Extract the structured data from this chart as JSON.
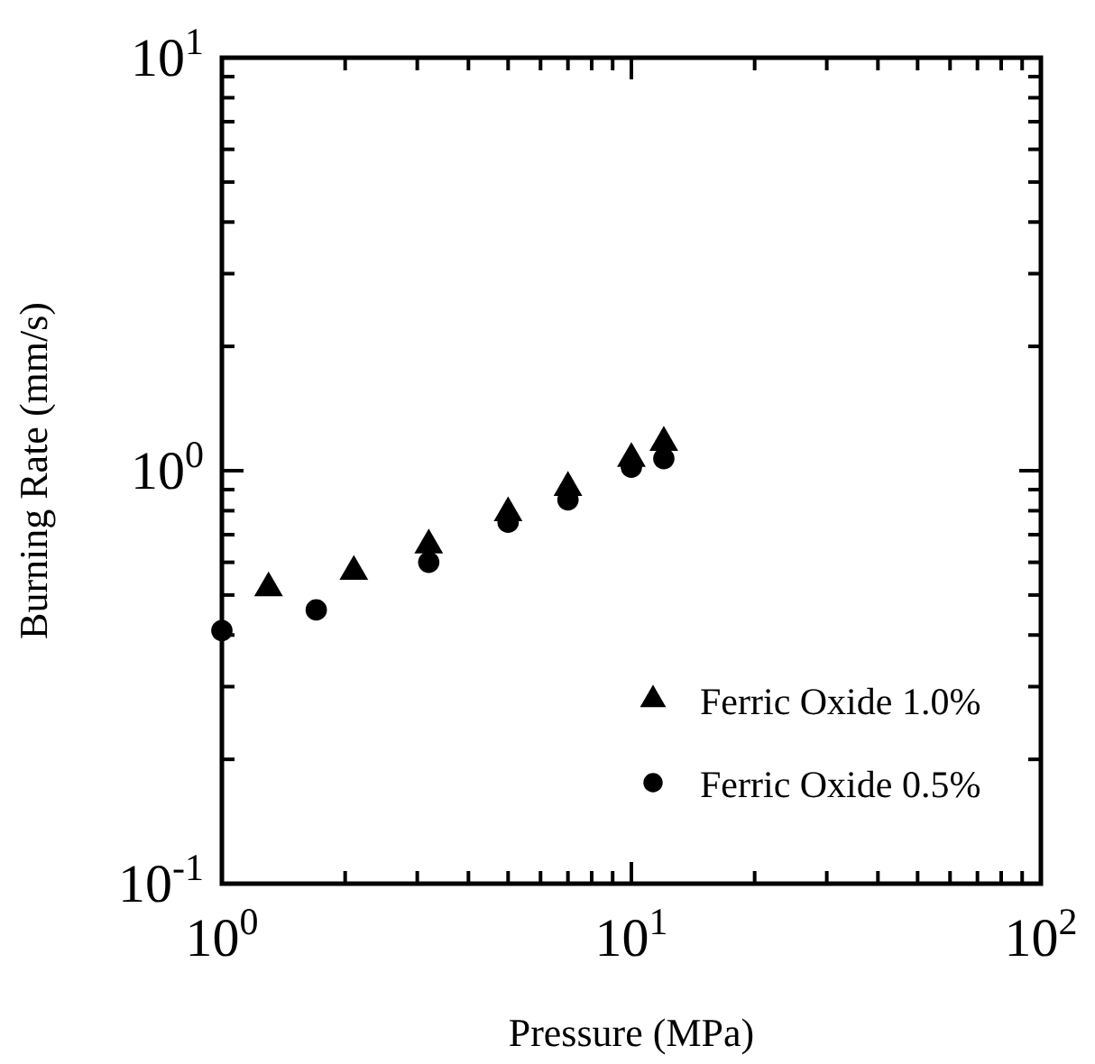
{
  "chart_data": {
    "type": "scatter",
    "xlabel": "Pressure (MPa)",
    "ylabel": "Burning Rate (mm/s)",
    "log": "xy",
    "grid": false,
    "legend": "bottom right",
    "xlim": [
      1,
      100
    ],
    "ylim": [
      0.1,
      10
    ],
    "xticks": [
      {
        "value": 1,
        "label": "10$^{0}$"
      },
      {
        "value": 2,
        "label": null
      },
      {
        "value": 3,
        "label": null
      },
      {
        "value": 4,
        "label": null
      },
      {
        "value": 5,
        "label": null
      },
      {
        "value": 6,
        "label": null
      },
      {
        "value": 7,
        "label": null
      },
      {
        "value": 8,
        "label": null
      },
      {
        "value": 9,
        "label": null
      },
      {
        "value": 10,
        "label": "10$^{1}$"
      },
      {
        "value": 20,
        "label": null
      },
      {
        "value": 30,
        "label": null
      },
      {
        "value": 40,
        "label": null
      },
      {
        "value": 50,
        "label": null
      },
      {
        "value": 60,
        "label": null
      },
      {
        "value": 70,
        "label": null
      },
      {
        "value": 80,
        "label": null
      },
      {
        "value": 90,
        "label": null
      },
      {
        "value": 100,
        "label": "10$^{2}$"
      }
    ],
    "yticks": [
      {
        "value": 0.1,
        "label": "10$^{-1}$"
      },
      {
        "value": 0.2,
        "label": null
      },
      {
        "value": 0.3,
        "label": null
      },
      {
        "value": 0.4,
        "label": null
      },
      {
        "value": 0.5,
        "label": null
      },
      {
        "value": 0.6,
        "label": null
      },
      {
        "value": 0.7,
        "label": null
      },
      {
        "value": 0.8,
        "label": null
      },
      {
        "value": 0.9,
        "label": null
      },
      {
        "value": 1,
        "label": "10$^{0}$"
      },
      {
        "value": 2,
        "label": null
      },
      {
        "value": 3,
        "label": null
      },
      {
        "value": 4,
        "label": null
      },
      {
        "value": 5,
        "label": null
      },
      {
        "value": 6,
        "label": null
      },
      {
        "value": 7,
        "label": null
      },
      {
        "value": 8,
        "label": null
      },
      {
        "value": 9,
        "label": null
      },
      {
        "value": 10,
        "label": "10$^{1}$"
      }
    ],
    "series": [
      {
        "name": "Ferric Oxide 1.0%",
        "color": "#000000",
        "marker": "triangle",
        "x": [
          1.3,
          2.1,
          3.2,
          5,
          7,
          10,
          12
        ],
        "values": [
          0.52,
          0.57,
          0.66,
          0.79,
          0.91,
          1.07,
          1.17
        ]
      },
      {
        "name": "Ferric Oxide 0.5%",
        "color": "#000000",
        "marker": "circle",
        "x": [
          1,
          1.7,
          3.2,
          5,
          7,
          10,
          12
        ],
        "values": [
          0.41,
          0.46,
          0.6,
          0.75,
          0.85,
          1.02,
          1.07
        ]
      }
    ]
  }
}
